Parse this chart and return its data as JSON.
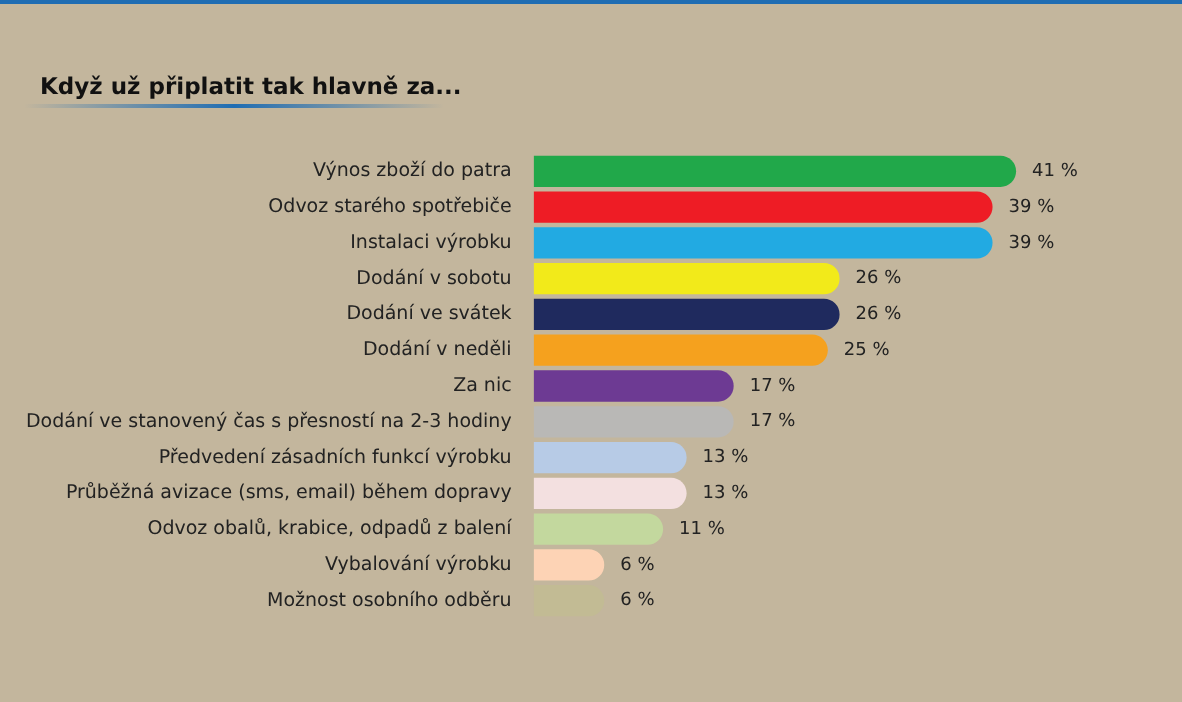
{
  "chart_data": {
    "type": "bar",
    "orientation": "horizontal",
    "title": "Když už připlatit tak hlavně za...",
    "categories": [
      "Výnos zboží do patra",
      "Odvoz starého spotřebiče",
      "Instalaci výrobku",
      "Dodání v sobotu",
      "Dodání ve svátek",
      "Dodání v neděli",
      "Za nic",
      "Dodání ve stanovený čas s přesností na 2-3 hodiny",
      "Předvedení zásadních funkcí výrobku",
      "Průběžná avizace (sms, email) během dopravy",
      "Odvoz obalů, krabice, odpadů z balení",
      "Vybalování výrobku",
      "Možnost osobního odběru"
    ],
    "values": [
      41,
      39,
      39,
      26,
      26,
      25,
      17,
      17,
      13,
      13,
      11,
      6,
      6
    ],
    "value_labels": [
      "41 %",
      "39 %",
      "39 %",
      "26 %",
      "26 %",
      "25 %",
      "17 %",
      "17 %",
      "13 %",
      "13 %",
      "11 %",
      "6 %",
      "6 %"
    ],
    "colors": [
      "#21a84a",
      "#ee1c25",
      "#22aae2",
      "#f2ea1a",
      "#1f2a5e",
      "#f5a11e",
      "#6d3a93",
      "#b9b8b6",
      "#b7cbe6",
      "#f3e0e0",
      "#c3d89e",
      "#fdd3b5",
      "#c2bb94"
    ],
    "legend": false
  }
}
